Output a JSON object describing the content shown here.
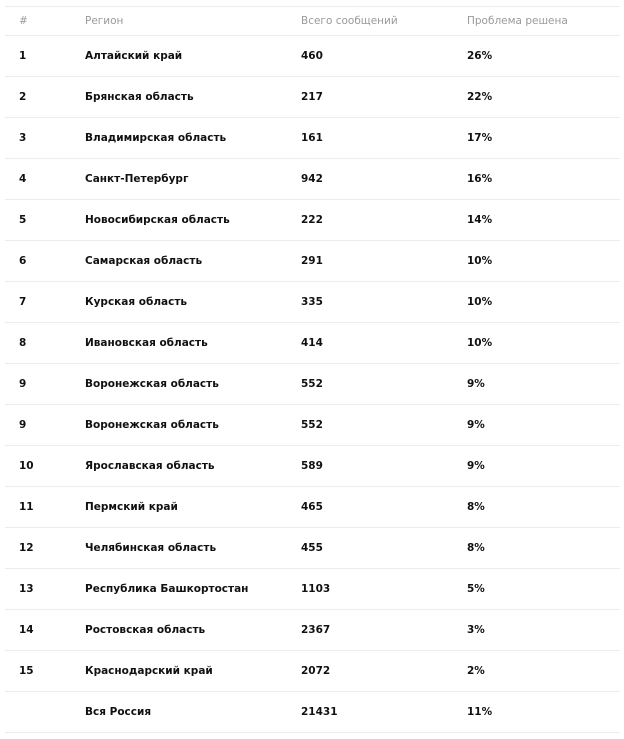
{
  "table": {
    "headers": [
      "#",
      "Регион",
      "Всего сообщений",
      "Проблема решена"
    ],
    "rows": [
      {
        "rank": "1",
        "region": "Алтайский край",
        "total": "460",
        "solved": "26%"
      },
      {
        "rank": "2",
        "region": "Брянская область",
        "total": "217",
        "solved": "22%"
      },
      {
        "rank": "3",
        "region": "Владимирская область",
        "total": "161",
        "solved": "17%"
      },
      {
        "rank": "4",
        "region": "Санкт-Петербург",
        "total": "942",
        "solved": "16%"
      },
      {
        "rank": "5",
        "region": "Новосибирская область",
        "total": "222",
        "solved": "14%"
      },
      {
        "rank": "6",
        "region": "Самарская область",
        "total": "291",
        "solved": "10%"
      },
      {
        "rank": "7",
        "region": "Курская область",
        "total": "335",
        "solved": "10%"
      },
      {
        "rank": "8",
        "region": "Ивановская область",
        "total": "414",
        "solved": "10%"
      },
      {
        "rank": "9",
        "region": "Воронежская область",
        "total": "552",
        "solved": "9%"
      },
      {
        "rank": "9",
        "region": "Воронежская область",
        "total": "552",
        "solved": "9%"
      },
      {
        "rank": "10",
        "region": "Ярославская область",
        "total": "589",
        "solved": "9%"
      },
      {
        "rank": "11",
        "region": "Пермский край",
        "total": "465",
        "solved": "8%"
      },
      {
        "rank": "12",
        "region": "Челябинская область",
        "total": "455",
        "solved": "8%"
      },
      {
        "rank": "13",
        "region": "Республика Башкортостан",
        "total": "1103",
        "solved": "5%"
      },
      {
        "rank": "14",
        "region": "Ростовская область",
        "total": "2367",
        "solved": "3%"
      },
      {
        "rank": "15",
        "region": "Краснодарский край",
        "total": "2072",
        "solved": "2%"
      },
      {
        "rank": "",
        "region": "Вся Россия",
        "total": "21431",
        "solved": "11%"
      }
    ]
  }
}
